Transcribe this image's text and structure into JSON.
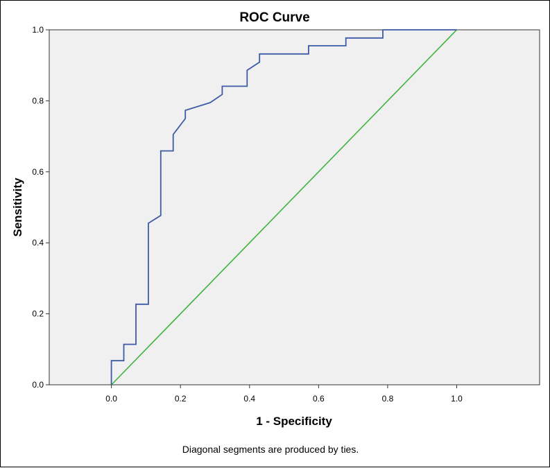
{
  "chart_data": {
    "type": "line",
    "title": "ROC Curve",
    "xlabel": "1 - Specificity",
    "ylabel": "Sensitivity",
    "footnote": "Diagonal segments are produced by ties.",
    "xlim": [
      -0.18,
      1.24
    ],
    "ylim": [
      0,
      1
    ],
    "xticks": [
      "0.0",
      "0.2",
      "0.4",
      "0.6",
      "0.8",
      "1.0"
    ],
    "yticks": [
      "0.0",
      "0.2",
      "0.4",
      "0.6",
      "0.8",
      "1.0"
    ],
    "grid": false,
    "colors": {
      "plot_background": "#f0f0f0",
      "roc_curve": "#3c5aa8",
      "reference_line": "#3cb43c"
    },
    "series": [
      {
        "x": [
          0,
          0,
          0.036,
          0.036,
          0.071,
          0.071,
          0.107,
          0.107,
          0.143,
          0.143,
          0.179,
          0.179,
          0.214,
          0.214,
          0.286,
          0.321,
          0.321,
          0.393,
          0.393,
          0.429,
          0.429,
          0.571,
          0.571,
          0.679,
          0.679,
          0.786,
          0.786,
          1.0
        ],
        "y": [
          0,
          0.068,
          0.068,
          0.114,
          0.114,
          0.227,
          0.227,
          0.455,
          0.477,
          0.659,
          0.659,
          0.705,
          0.75,
          0.773,
          0.795,
          0.818,
          0.841,
          0.841,
          0.886,
          0.909,
          0.932,
          0.932,
          0.955,
          0.955,
          0.977,
          0.977,
          1.0,
          1.0
        ]
      },
      {
        "x": [
          0,
          1
        ],
        "y": [
          0,
          1
        ]
      }
    ]
  }
}
